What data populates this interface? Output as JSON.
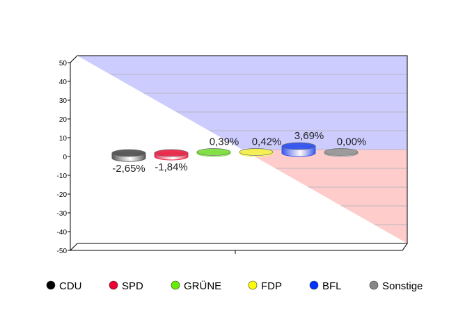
{
  "chart_data": {
    "type": "bar",
    "title": "",
    "xlabel": "",
    "ylabel": "",
    "ylim": [
      -50,
      50
    ],
    "yticks": [
      "50",
      "40",
      "30",
      "20",
      "10",
      "0",
      "-10",
      "-20",
      "-30",
      "-40",
      "-50"
    ],
    "ytick_values": [
      50,
      40,
      30,
      20,
      10,
      0,
      -10,
      -20,
      -30,
      -40,
      -50
    ],
    "grid": true,
    "legend_position": "bottom",
    "categories": [
      "CDU",
      "SPD",
      "GRÜNE",
      "FDP",
      "BFL",
      "Sonstige"
    ],
    "values": [
      -2.65,
      -1.84,
      0.39,
      0.42,
      3.69,
      0.0
    ],
    "data_labels": [
      "-2,65%",
      "-1,84%",
      "0,39%",
      "0,42%",
      "3,69%",
      "0,00%"
    ],
    "colors": [
      "#555555",
      "#e8294a",
      "#7fe040",
      "#f4f050",
      "#3355ee",
      "#999999"
    ],
    "legend_colors": [
      "#000000",
      "#ee0033",
      "#66ee00",
      "#ffff00",
      "#0033ff",
      "#888888"
    ],
    "positive_area_color": "#ccccff",
    "negative_area_color": "#ffcccc"
  }
}
